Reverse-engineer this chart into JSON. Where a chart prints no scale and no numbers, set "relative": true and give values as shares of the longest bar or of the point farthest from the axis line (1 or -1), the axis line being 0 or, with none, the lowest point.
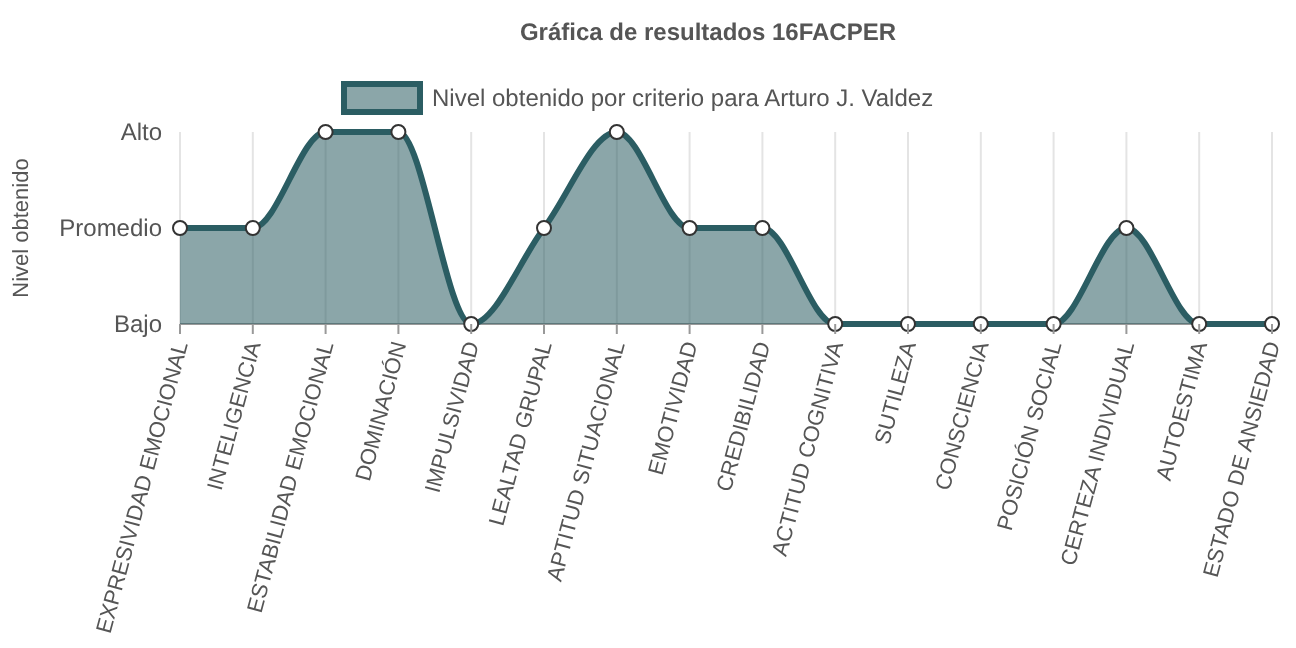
{
  "chart_data": {
    "type": "area",
    "title": "Gráfica de resultados 16FACPER",
    "ylabel": "Nivel obtenido",
    "categories": [
      "EXPRESIVIDAD EMOCIONAL",
      "INTELIGENCIA",
      "ESTABILIDAD EMOCIONAL",
      "DOMINACIÓN",
      "IMPULSIVIDAD",
      "LEALTAD GRUPAL",
      "APTITUD SITUACIONAL",
      "EMOTIVIDAD",
      "CREDIBILIDAD",
      "ACTITUD COGNITIVA",
      "SUTILEZA",
      "CONSCIENCIA",
      "POSICIÓN SOCIAL",
      "CERTEZA INDIVIDUAL",
      "AUTOESTIMA",
      "ESTADO DE ANSIEDAD"
    ],
    "series": [
      {
        "name": "Nivel obtenido por criterio para Arturo J. Valdez",
        "color": "#2b5d63",
        "values": [
          0.5,
          0.5,
          1,
          1,
          0,
          0.5,
          1,
          0.5,
          0.5,
          0,
          0,
          0,
          0,
          0.5,
          0,
          0
        ]
      }
    ],
    "relative": true,
    "annotations": [
      "Bajo",
      "Promedio",
      "Alto"
    ],
    "grid": "x",
    "legend": "top",
    "marker": "circle"
  }
}
